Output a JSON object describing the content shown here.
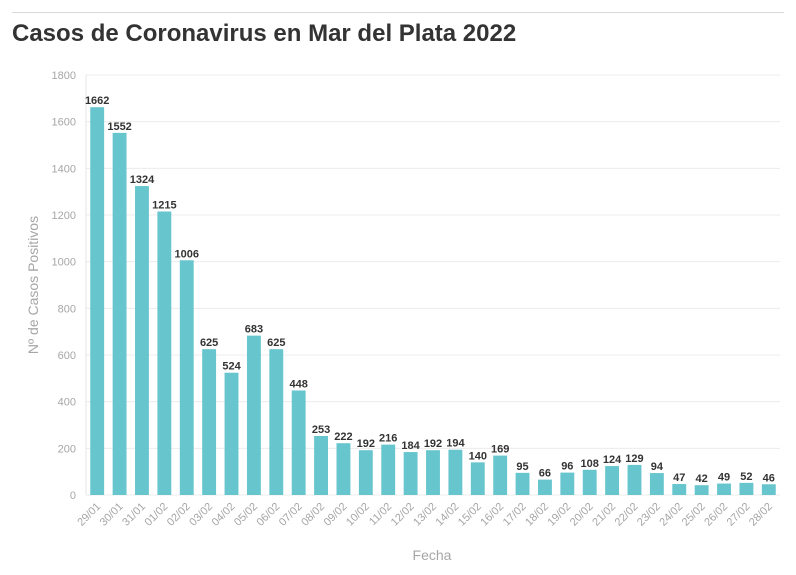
{
  "chart_data": {
    "type": "bar",
    "title": "Casos de Coronavirus en Mar del Plata 2022",
    "xlabel": "Fecha",
    "ylabel": "Nº de Casos Positivos",
    "ylim": [
      0,
      1800
    ],
    "yticks": [
      0,
      200,
      400,
      600,
      800,
      1000,
      1200,
      1400,
      1600,
      1800
    ],
    "grid": true,
    "bar_color": "#67c5ce",
    "categories": [
      "29/01",
      "30/01",
      "31/01",
      "01/02",
      "02/02",
      "03/02",
      "04/02",
      "05/02",
      "06/02",
      "07/02",
      "08/02",
      "09/02",
      "10/02",
      "11/02",
      "12/02",
      "13/02",
      "14/02",
      "15/02",
      "16/02",
      "17/02",
      "18/02",
      "19/02",
      "20/02",
      "21/02",
      "22/02",
      "23/02",
      "24/02",
      "25/02",
      "26/02",
      "27/02",
      "28/02"
    ],
    "values": [
      1662,
      1552,
      1324,
      1215,
      1006,
      625,
      524,
      683,
      625,
      448,
      253,
      222,
      192,
      216,
      184,
      192,
      194,
      140,
      169,
      95,
      66,
      96,
      108,
      124,
      129,
      94,
      47,
      42,
      49,
      52,
      46
    ]
  }
}
